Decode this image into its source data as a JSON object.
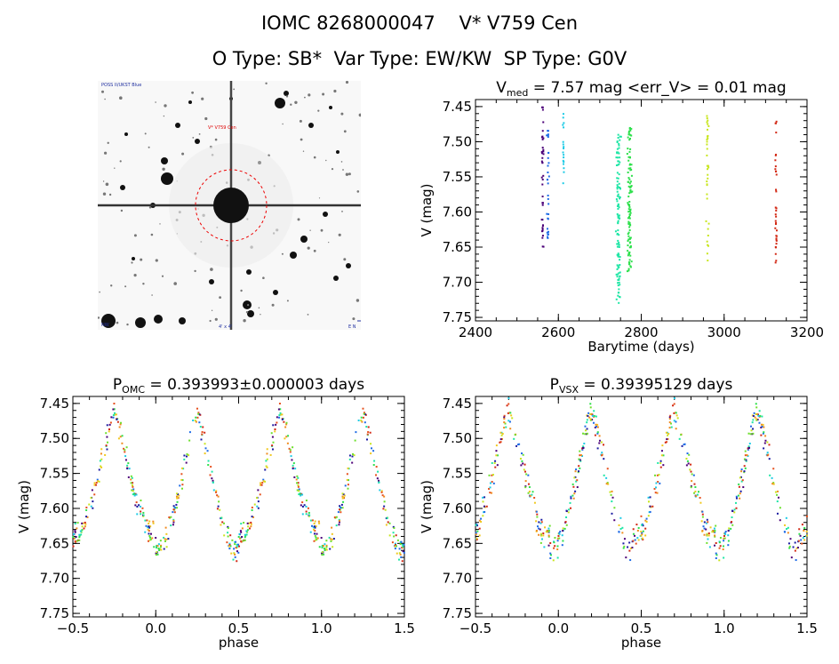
{
  "header": {
    "line1": "IOMC 8268000047    V* V759 Cen",
    "line2": "O Type: SB*  Var Type: EW/KW  SP Type: G0V"
  },
  "thumbnail": {
    "label_top_left": "POSS II/UKST Blue",
    "label_target": "V* V759 Cen",
    "label_bottom": "4' x 4'",
    "label_bottom_left": "NW",
    "label_bottom_right": "E N"
  },
  "colors": [
    "#4b0078",
    "#1a1aa0",
    "#1e6be6",
    "#1ecbe6",
    "#1ee6a5",
    "#2ee04c",
    "#6ee02e",
    "#c8e61e",
    "#f0c81e",
    "#f08c1e",
    "#e6501e",
    "#d22814"
  ],
  "chart_data": [
    {
      "id": "lightcurve",
      "type": "scatter",
      "title_parts": {
        "v": "V",
        "sub": "med",
        "rest": " = 7.57 mag <err_V> = 0.01 mag"
      },
      "xlabel": "Barytime (days)",
      "ylabel": "V (mag)",
      "xlim": [
        2400,
        3200
      ],
      "ylim": [
        7.755,
        7.44
      ],
      "xticks": [
        2400,
        2600,
        2800,
        3000,
        3200
      ],
      "yticks": [
        7.45,
        7.5,
        7.55,
        7.6,
        7.65,
        7.7,
        7.75
      ],
      "ytick_labels": [
        "7.45",
        "7.50",
        "7.55",
        "7.60",
        "7.65",
        "7.70",
        "7.75"
      ],
      "groups": [
        {
          "x_center": 2562,
          "x_spread": 4,
          "y_min": 7.45,
          "y_max": 7.65,
          "color": 0,
          "n": 40
        },
        {
          "x_center": 2575,
          "x_spread": 4,
          "y_min": 7.47,
          "y_max": 7.64,
          "color": 2,
          "n": 30
        },
        {
          "x_center": 2612,
          "x_spread": 2,
          "y_min": 7.46,
          "y_max": 7.56,
          "color": 3,
          "n": 18
        },
        {
          "x_center": 2745,
          "x_spread": 7,
          "y_min": 7.49,
          "y_max": 7.73,
          "color": 4,
          "n": 110
        },
        {
          "x_center": 2772,
          "x_spread": 7,
          "y_min": 7.48,
          "y_max": 7.69,
          "color": 5,
          "n": 110
        },
        {
          "x_center": 2960,
          "x_spread": 4,
          "y_min": 7.46,
          "y_max": 7.67,
          "color": 7,
          "n": 35
        },
        {
          "x_center": 3125,
          "x_spread": 3,
          "y_min": 7.47,
          "y_max": 7.69,
          "color": 11,
          "n": 35
        }
      ]
    },
    {
      "id": "phase_omc",
      "type": "scatter",
      "title_parts": {
        "v": "P",
        "sub": "OMC",
        "rest": " = 0.393993±0.000003 days"
      },
      "xlabel": "phase",
      "ylabel": "V (mag)",
      "xlim": [
        -0.5,
        1.5
      ],
      "ylim": [
        7.755,
        7.44
      ],
      "xticks": [
        -0.5,
        0.0,
        0.5,
        1.0,
        1.5
      ],
      "xtick_labels": [
        "−0.5",
        "0.0",
        "0.5",
        "1.0",
        "1.5"
      ],
      "yticks": [
        7.45,
        7.5,
        7.55,
        7.6,
        7.65,
        7.7,
        7.75
      ],
      "ytick_labels": [
        "7.45",
        "7.50",
        "7.55",
        "7.60",
        "7.65",
        "7.70",
        "7.75"
      ],
      "model": {
        "min1_phase": 0.0,
        "min2_phase": 0.5,
        "max_mag": 7.46,
        "min1_mag": 7.66,
        "min2_mag": 7.64,
        "scatter": 0.025
      },
      "n_points": 300
    },
    {
      "id": "phase_vsx",
      "type": "scatter",
      "title_parts": {
        "v": "P",
        "sub": "VSX",
        "rest": " = 0.39395129 days"
      },
      "xlabel": "phase",
      "ylabel": "V (mag)",
      "xlim": [
        -0.5,
        1.5
      ],
      "ylim": [
        7.755,
        7.44
      ],
      "xticks": [
        -0.5,
        0.0,
        0.5,
        1.0,
        1.5
      ],
      "xtick_labels": [
        "−0.5",
        "0.0",
        "0.5",
        "1.0",
        "1.5"
      ],
      "yticks": [
        7.45,
        7.5,
        7.55,
        7.6,
        7.65,
        7.7,
        7.75
      ],
      "ytick_labels": [
        "7.45",
        "7.50",
        "7.55",
        "7.60",
        "7.65",
        "7.70",
        "7.75"
      ],
      "model": {
        "min1_phase": -0.05,
        "min2_phase": 0.45,
        "max_mag": 7.46,
        "min1_mag": 7.66,
        "min2_mag": 7.64,
        "scatter": 0.03
      },
      "n_points": 300
    }
  ]
}
